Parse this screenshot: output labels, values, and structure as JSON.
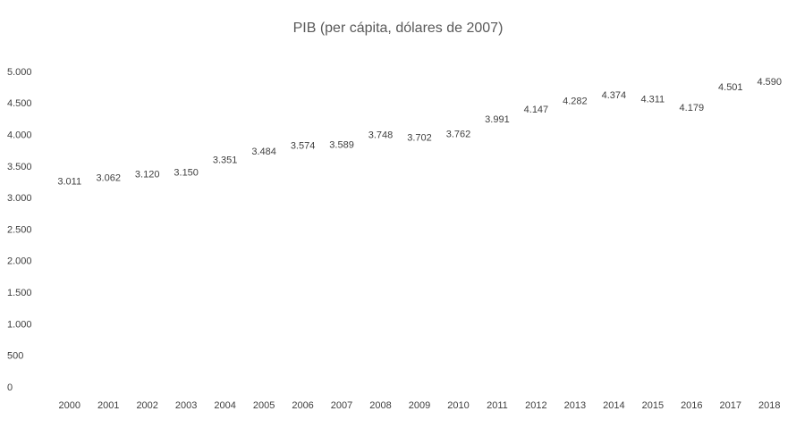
{
  "chart_data": {
    "type": "line",
    "title": "PIB (per cápita, dólares de 2007)",
    "categories": [
      "2000",
      "2001",
      "2002",
      "2003",
      "2004",
      "2005",
      "2006",
      "2007",
      "2008",
      "2009",
      "2010",
      "2011",
      "2012",
      "2013",
      "2014",
      "2015",
      "2016",
      "2017",
      "2018"
    ],
    "values": [
      3011,
      3062,
      3120,
      3150,
      3351,
      3484,
      3574,
      3589,
      3748,
      3702,
      3762,
      3991,
      4147,
      4282,
      4374,
      4311,
      4179,
      4501,
      4590
    ],
    "value_labels": [
      "3.011",
      "3.062",
      "3.120",
      "3.150",
      "3.351",
      "3.484",
      "3.574",
      "3.589",
      "3.748",
      "3.702",
      "3.762",
      "3.991",
      "4.147",
      "4.282",
      "4.374",
      "4.311",
      "4.179",
      "4.501",
      "4.590"
    ],
    "ylim": [
      0,
      5000
    ],
    "yticks": [
      0,
      500,
      {
        "value": 1000,
        "label": "1.000"
      },
      {
        "value": 1500,
        "label": "1.500"
      },
      {
        "value": 2000,
        "label": "2.000"
      },
      {
        "value": 2500,
        "label": "2.500"
      },
      {
        "value": 3000,
        "label": "3.000"
      },
      {
        "value": 3500,
        "label": "3.500"
      },
      {
        "value": 4000,
        "label": "4.000"
      },
      {
        "value": 4500,
        "label": "4.500"
      },
      {
        "value": 5000,
        "label": "5.000"
      }
    ],
    "grid": false
  }
}
